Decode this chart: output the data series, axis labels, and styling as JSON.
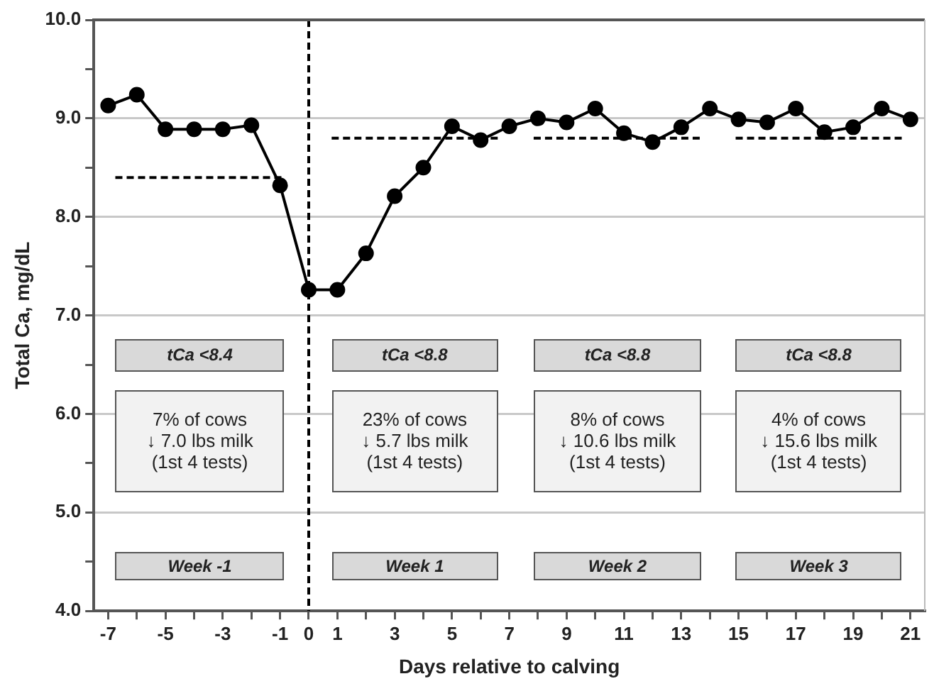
{
  "chart_data": {
    "type": "line",
    "xlabel": "Days relative to calving",
    "ylabel": "Total Ca, mg/dL",
    "x": [
      -7,
      -6,
      -5,
      -4,
      -3,
      -2,
      -1,
      0,
      1,
      2,
      3,
      4,
      5,
      6,
      7,
      8,
      9,
      10,
      11,
      12,
      13,
      14,
      15,
      16,
      17,
      18,
      19,
      20,
      21
    ],
    "series": [
      {
        "color": "#000000",
        "marker": "circle",
        "line_style": "solid",
        "values": [
          9.13,
          9.24,
          8.89,
          8.89,
          8.89,
          8.93,
          8.32,
          7.26,
          7.26,
          7.63,
          8.21,
          8.5,
          8.92,
          8.78,
          8.92,
          9.0,
          8.96,
          9.1,
          8.85,
          8.76,
          8.91,
          9.1,
          8.99,
          8.96,
          9.1,
          8.86,
          8.91,
          9.1,
          8.99
        ]
      },
      {
        "type": "line",
        "color": "#000000",
        "marker": "none",
        "line_style": "dashed",
        "x": [
          -6.75,
          -0.85
        ],
        "values": [
          8.4,
          8.4
        ]
      },
      {
        "type": "line",
        "color": "#000000",
        "marker": "none",
        "line_style": "dashed",
        "x": [
          0.8,
          6.6
        ],
        "values": [
          8.8,
          8.8
        ]
      },
      {
        "type": "line",
        "color": "#000000",
        "marker": "none",
        "line_style": "dashed",
        "x": [
          7.85,
          13.7
        ],
        "values": [
          8.8,
          8.8
        ]
      },
      {
        "type": "line",
        "color": "#000000",
        "marker": "none",
        "line_style": "dashed",
        "x": [
          14.9,
          20.7
        ],
        "values": [
          8.8,
          8.8
        ]
      }
    ],
    "ref_lines": [
      {
        "axis": "x",
        "value": 0,
        "color": "#000000",
        "line_style": "dashed"
      }
    ],
    "annotations": [
      "tCa <8.4",
      "tCa <8.8",
      "tCa <8.8",
      "tCa <8.8",
      "7% of cows\n↓ 7.0 lbs milk\n(1st 4 tests)",
      "23% of cows\n↓ 5.7 lbs milk\n(1st 4 tests)",
      "8% of cows\n↓ 10.6 lbs milk\n(1st 4 tests)",
      "4% of cows\n↓ 15.6 lbs milk\n(1st 4 tests)",
      "Week -1",
      "Week 1",
      "Week 2",
      "Week 3"
    ],
    "xlim": [
      -7.5,
      21.5
    ],
    "xticks": [
      -7,
      {
        "value": -6,
        "label": null
      },
      -5,
      {
        "value": -4,
        "label": null
      },
      -3,
      {
        "value": -2,
        "label": null
      },
      -1,
      0,
      1,
      {
        "value": 2,
        "label": null
      },
      3,
      {
        "value": 4,
        "label": null
      },
      5,
      {
        "value": 6,
        "label": null
      },
      7,
      {
        "value": 8,
        "label": null
      },
      9,
      {
        "value": 10,
        "label": null
      },
      11,
      {
        "value": 12,
        "label": null
      },
      13,
      {
        "value": 14,
        "label": null
      },
      15,
      {
        "value": 16,
        "label": null
      },
      17,
      {
        "value": 18,
        "label": null
      },
      19,
      {
        "value": 20,
        "label": null
      },
      21
    ],
    "ylim": [
      4,
      10
    ],
    "yticks": [
      {
        "value": 4,
        "label": "4.0"
      },
      {
        "value": 4.5,
        "label": null
      },
      {
        "value": 5,
        "label": "5.0"
      },
      {
        "value": 5.5,
        "label": null
      },
      {
        "value": 6,
        "label": "6.0"
      },
      {
        "value": 6.5,
        "label": null
      },
      {
        "value": 7,
        "label": "7.0"
      },
      {
        "value": 7.5,
        "label": null
      },
      {
        "value": 8,
        "label": "8.0"
      },
      {
        "value": 8.5,
        "label": null
      },
      {
        "value": 9,
        "label": "9.0"
      },
      {
        "value": 9.5,
        "label": null
      },
      {
        "value": 10,
        "label": "10.0"
      }
    ],
    "grid": "y",
    "legend": false
  }
}
